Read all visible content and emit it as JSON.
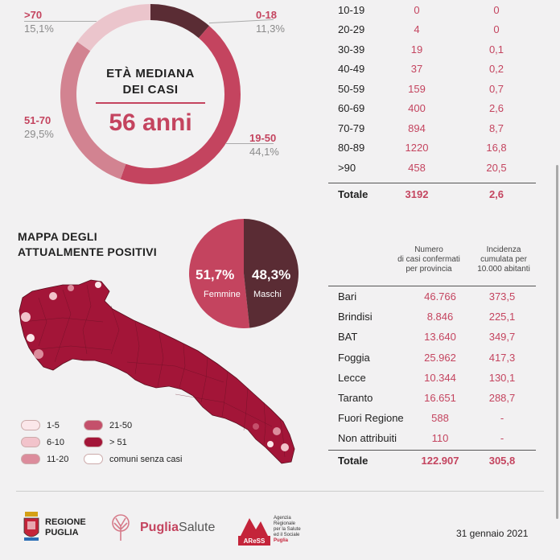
{
  "colors": {
    "accent": "#c4445f",
    "dark": "#5a2c34",
    "mid": "#d28391",
    "light": "#ebc5cc",
    "muted_text": "#8a8a8a"
  },
  "donut": {
    "title_line1": "ETÀ MEDIANA",
    "title_line2": "DEI CASI",
    "value": "56 anni",
    "segments": [
      {
        "label": "0-18",
        "percent": "11,3%",
        "value": 11.3
      },
      {
        "label": "19-50",
        "percent": "44,1%",
        "value": 44.1
      },
      {
        "label": "51-70",
        "percent": "29,5%",
        "value": 29.5
      },
      {
        "label": ">70",
        "percent": "15,1%",
        "value": 15.1
      }
    ]
  },
  "age_table": {
    "rows": [
      {
        "age": "10-19",
        "cases": "0",
        "rate": "0"
      },
      {
        "age": "20-29",
        "cases": "4",
        "rate": "0"
      },
      {
        "age": "30-39",
        "cases": "19",
        "rate": "0,1"
      },
      {
        "age": "40-49",
        "cases": "37",
        "rate": "0,2"
      },
      {
        "age": "50-59",
        "cases": "159",
        "rate": "0,7"
      },
      {
        "age": "60-69",
        "cases": "400",
        "rate": "2,6"
      },
      {
        "age": "70-79",
        "cases": "894",
        "rate": "8,7"
      },
      {
        "age": "80-89",
        "cases": "1220",
        "rate": "16,8"
      },
      {
        "age": ">90",
        "cases": "458",
        "rate": "20,5"
      }
    ],
    "total": {
      "label": "Totale",
      "cases": "3192",
      "rate": "2,6"
    }
  },
  "map": {
    "title_line1": "MAPPA DEGLI",
    "title_line2": "ATTUALMENTE POSITIVI",
    "legend": [
      {
        "label": "1-5",
        "color": "#fbe7ea"
      },
      {
        "label": "6-10",
        "color": "#f2c3cb"
      },
      {
        "label": "11-20",
        "color": "#dc8c9c"
      },
      {
        "label": "21-50",
        "color": "#c4506b"
      },
      {
        "label": "> 51",
        "color": "#a31538"
      },
      {
        "label": "comuni senza casi",
        "color": "#ffffff"
      }
    ]
  },
  "gender": {
    "female_pct": "51,7%",
    "female_label": "Femmine",
    "male_pct": "48,3%",
    "male_label": "Maschi"
  },
  "province_table": {
    "header_cases": [
      "Numero",
      "di casi confermati",
      "per provincia"
    ],
    "header_rate": [
      "Incidenza",
      "cumulata per",
      "10.000 abitanti"
    ],
    "rows": [
      {
        "name": "Bari",
        "cases": "46.766",
        "rate": "373,5"
      },
      {
        "name": "Brindisi",
        "cases": "8.846",
        "rate": "225,1"
      },
      {
        "name": "BAT",
        "cases": "13.640",
        "rate": "349,7"
      },
      {
        "name": "Foggia",
        "cases": "25.962",
        "rate": "417,3"
      },
      {
        "name": "Lecce",
        "cases": "10.344",
        "rate": "130,1"
      },
      {
        "name": "Taranto",
        "cases": "16.651",
        "rate": "288,7"
      },
      {
        "name": "Fuori Regione",
        "cases": "588",
        "rate": "-"
      },
      {
        "name": "Non attribuiti",
        "cases": "110",
        "rate": "-"
      }
    ],
    "total": {
      "label": "Totale",
      "cases": "122.907",
      "rate": "305,8"
    }
  },
  "footer": {
    "regione_line1": "REGIONE",
    "regione_line2": "PUGLIA",
    "puglia_salute_a": "Puglia",
    "puglia_salute_b": "Salute",
    "aress_badge": "AReSS",
    "aress_text": [
      "Agenzia",
      "Regionale",
      "per la Salute",
      "ed il Sociale",
      "Puglia"
    ],
    "date": "31 gennaio 2021"
  }
}
